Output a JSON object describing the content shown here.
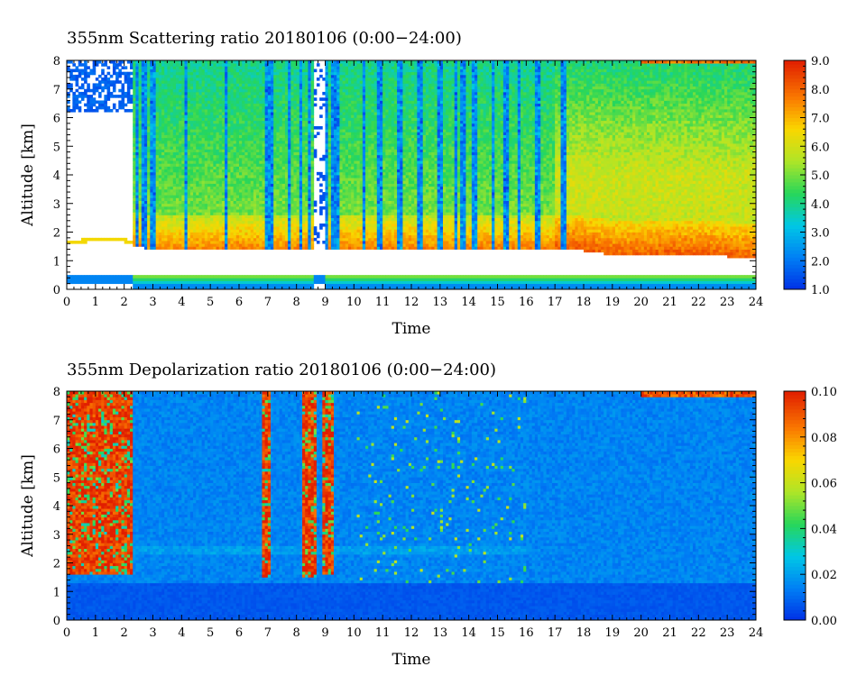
{
  "chart_data": [
    {
      "type": "heatmap",
      "title": "355nm Scattering ratio  20180106 (0:00−24:00)",
      "xlabel": "Time",
      "ylabel": "Altitude [km]",
      "xlim": [
        0,
        24
      ],
      "ylim": [
        0,
        8
      ],
      "x_ticks": [
        "0",
        "1",
        "2",
        "3",
        "4",
        "5",
        "6",
        "7",
        "8",
        "9",
        "10",
        "11",
        "12",
        "13",
        "14",
        "15",
        "16",
        "17",
        "18",
        "19",
        "20",
        "21",
        "22",
        "23",
        "24"
      ],
      "y_ticks": [
        "0",
        "1",
        "2",
        "3",
        "4",
        "5",
        "6",
        "7",
        "8"
      ],
      "colorbar": {
        "min": 1.0,
        "max": 9.0,
        "tick_values": [
          1.0,
          2.0,
          3.0,
          4.0,
          5.0,
          6.0,
          7.0,
          8.0,
          9.0
        ],
        "tick_labels": [
          "1.0",
          "2.0",
          "3.0",
          "4.0",
          "5.0",
          "6.0",
          "7.0",
          "8.0",
          "9.0"
        ]
      },
      "summary": {
        "cloud_base_km": [
          [
            0.0,
            1.55
          ],
          [
            1.0,
            1.7
          ],
          [
            2.0,
            1.65
          ],
          [
            2.4,
            1.5
          ],
          [
            3.0,
            1.4
          ],
          [
            4.0,
            1.35
          ],
          [
            5.0,
            1.4
          ],
          [
            6.0,
            1.45
          ],
          [
            7.0,
            1.4
          ],
          [
            8.0,
            1.45
          ],
          [
            9.0,
            1.45
          ],
          [
            10.0,
            1.45
          ],
          [
            11.0,
            1.45
          ],
          [
            12.0,
            1.45
          ],
          [
            13.0,
            1.45
          ],
          [
            14.0,
            1.45
          ],
          [
            15.0,
            1.45
          ],
          [
            16.0,
            1.45
          ],
          [
            17.0,
            1.4
          ],
          [
            18.0,
            1.35
          ],
          [
            19.0,
            1.2
          ],
          [
            20.0,
            1.15
          ],
          [
            21.0,
            1.25
          ],
          [
            22.0,
            1.2
          ],
          [
            23.0,
            1.15
          ],
          [
            24.0,
            1.1
          ]
        ],
        "near_surface_band_km": [
          0.2,
          0.45
        ],
        "gaps_no_data": [
          [
            0.0,
            2.3
          ],
          [
            8.6,
            9.0
          ]
        ],
        "clear_lanes_h": [
          2.45,
          2.7,
          3.0,
          4.15,
          5.55,
          6.95,
          7.1,
          7.75,
          8.15,
          8.45,
          8.65,
          9.05,
          9.3,
          9.45,
          10.35,
          10.9,
          11.6,
          12.3,
          13.0,
          13.55,
          13.8,
          14.2,
          14.85,
          15.3,
          15.75,
          16.4,
          17.3
        ],
        "notes": "Scattering ratio about 4–5 aloft, rising to 6–8 above the cloud base near 1.4 km; the afternoon (17–24 h) is mostly 5–7 with a thin layer near 8 km after 20 h."
      }
    },
    {
      "type": "heatmap",
      "title": "355nm Depolarization ratio  20180106 (0:00−24:00)",
      "xlabel": "Time",
      "ylabel": "Altitude [km]",
      "xlim": [
        0,
        24
      ],
      "ylim": [
        0,
        8
      ],
      "x_ticks": [
        "0",
        "1",
        "2",
        "3",
        "4",
        "5",
        "6",
        "7",
        "8",
        "9",
        "10",
        "11",
        "12",
        "13",
        "14",
        "15",
        "16",
        "17",
        "18",
        "19",
        "20",
        "21",
        "22",
        "23",
        "24"
      ],
      "y_ticks": [
        "0",
        "1",
        "2",
        "3",
        "4",
        "5",
        "6",
        "7",
        "8"
      ],
      "colorbar": {
        "min": 0.0,
        "max": 0.1,
        "tick_values": [
          0.0,
          0.02,
          0.04,
          0.06,
          0.08,
          0.1
        ],
        "tick_labels": [
          "0.00",
          "0.02",
          "0.04",
          "0.06",
          "0.08",
          "0.10"
        ]
      },
      "summary": {
        "high_depol_regions": [
          [
            0.0,
            2.3,
            1.6,
            8.0
          ],
          [
            6.85,
            7.15,
            1.5,
            8.0
          ],
          [
            8.25,
            8.7,
            1.5,
            8.0
          ],
          [
            8.9,
            9.3,
            1.6,
            8.0
          ]
        ],
        "background_value": 0.015,
        "boundary_layer_value": 0.005,
        "notes": "Depolarization mostly 0.01–0.02 aloft, about 0.005 below 1.3 km; high values (>0.08) at 0–2.3 h and in narrow columns near 7, 8.5 and 9 h."
      }
    }
  ]
}
